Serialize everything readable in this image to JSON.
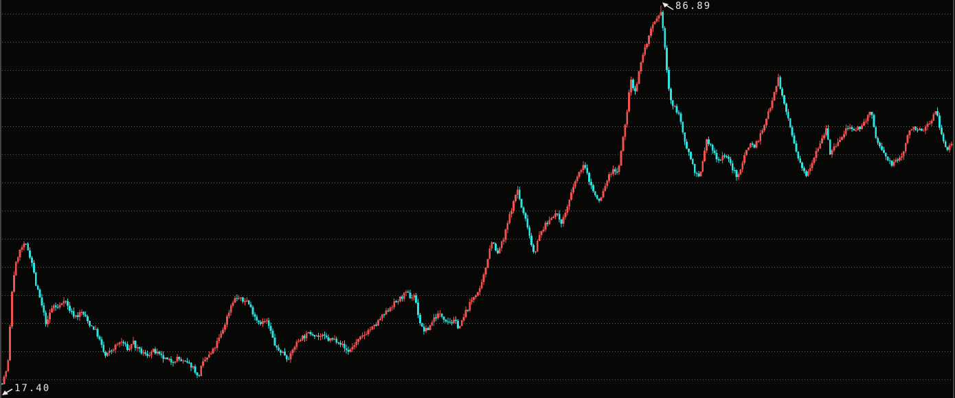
{
  "chart_data": {
    "type": "candlestick",
    "title": "",
    "xlabel": "",
    "ylabel": "",
    "legend": "none",
    "grid": "dotted-horizontal",
    "max_price": 86.89,
    "min_price": 17.4,
    "max_label": "86.89",
    "min_label": "17.40",
    "up_color": "#f25250",
    "down_color": "#2ce4e4",
    "background_color": "#070706",
    "grid_color": "#7d7d7d",
    "axis_color": "#454545",
    "label_color": "#e8e8e8",
    "price_path": [
      [
        3,
        17.6
      ],
      [
        8,
        19.3
      ],
      [
        12,
        21.8
      ],
      [
        15,
        28.7
      ],
      [
        18,
        35.7
      ],
      [
        22,
        38.9
      ],
      [
        27,
        41.4
      ],
      [
        33,
        42.7
      ],
      [
        38,
        42.9
      ],
      [
        42,
        41.7
      ],
      [
        47,
        39.5
      ],
      [
        52,
        35.7
      ],
      [
        58,
        33.2
      ],
      [
        63,
        30.7
      ],
      [
        68,
        28.1
      ],
      [
        73,
        30.7
      ],
      [
        78,
        31.9
      ],
      [
        83,
        31.3
      ],
      [
        88,
        31.9
      ],
      [
        93,
        33.2
      ],
      [
        98,
        31.9
      ],
      [
        103,
        30.7
      ],
      [
        108,
        30.0
      ],
      [
        113,
        30.0
      ],
      [
        118,
        30.7
      ],
      [
        123,
        30.0
      ],
      [
        128,
        28.8
      ],
      [
        133,
        28.1
      ],
      [
        138,
        27.5
      ],
      [
        143,
        26.2
      ],
      [
        148,
        24.3
      ],
      [
        153,
        22.5
      ],
      [
        158,
        23.1
      ],
      [
        163,
        23.7
      ],
      [
        168,
        24.3
      ],
      [
        173,
        25.0
      ],
      [
        178,
        25.2
      ],
      [
        183,
        24.3
      ],
      [
        188,
        23.7
      ],
      [
        193,
        25.6
      ],
      [
        198,
        24.0
      ],
      [
        203,
        23.5
      ],
      [
        208,
        23.1
      ],
      [
        213,
        22.7
      ],
      [
        218,
        23.1
      ],
      [
        223,
        23.5
      ],
      [
        228,
        23.1
      ],
      [
        233,
        22.5
      ],
      [
        238,
        22.2
      ],
      [
        243,
        21.8
      ],
      [
        248,
        21.6
      ],
      [
        253,
        21.8
      ],
      [
        258,
        22.2
      ],
      [
        263,
        21.8
      ],
      [
        268,
        21.4
      ],
      [
        273,
        21.2
      ],
      [
        278,
        20.9
      ],
      [
        283,
        20.3
      ],
      [
        288,
        18.4
      ],
      [
        293,
        20.6
      ],
      [
        298,
        21.8
      ],
      [
        303,
        22.5
      ],
      [
        308,
        23.1
      ],
      [
        313,
        24.3
      ],
      [
        318,
        25.6
      ],
      [
        323,
        26.9
      ],
      [
        328,
        28.8
      ],
      [
        333,
        30.7
      ],
      [
        338,
        32.6
      ],
      [
        343,
        33.2
      ],
      [
        348,
        33.2
      ],
      [
        353,
        32.6
      ],
      [
        358,
        33.0
      ],
      [
        363,
        31.9
      ],
      [
        368,
        30.7
      ],
      [
        373,
        29.4
      ],
      [
        378,
        28.8
      ],
      [
        383,
        28.8
      ],
      [
        388,
        29.0
      ],
      [
        393,
        27.5
      ],
      [
        398,
        25.4
      ],
      [
        403,
        23.7
      ],
      [
        408,
        23.5
      ],
      [
        413,
        23.1
      ],
      [
        418,
        22.2
      ],
      [
        423,
        22.7
      ],
      [
        428,
        24.3
      ],
      [
        433,
        25.2
      ],
      [
        438,
        26.0
      ],
      [
        443,
        26.2
      ],
      [
        448,
        26.6
      ],
      [
        453,
        26.9
      ],
      [
        458,
        26.6
      ],
      [
        463,
        26.2
      ],
      [
        468,
        26.2
      ],
      [
        473,
        26.0
      ],
      [
        478,
        25.6
      ],
      [
        483,
        25.6
      ],
      [
        488,
        25.6
      ],
      [
        493,
        25.4
      ],
      [
        498,
        24.6
      ],
      [
        503,
        23.7
      ],
      [
        508,
        23.5
      ],
      [
        513,
        24.3
      ],
      [
        518,
        25.0
      ],
      [
        523,
        25.6
      ],
      [
        528,
        26.2
      ],
      [
        533,
        26.9
      ],
      [
        538,
        27.5
      ],
      [
        543,
        27.8
      ],
      [
        548,
        28.4
      ],
      [
        553,
        29.4
      ],
      [
        558,
        30.0
      ],
      [
        563,
        30.7
      ],
      [
        568,
        31.6
      ],
      [
        573,
        32.2
      ],
      [
        578,
        32.6
      ],
      [
        583,
        33.2
      ],
      [
        588,
        33.8
      ],
      [
        593,
        34.1
      ],
      [
        598,
        33.2
      ],
      [
        603,
        33.8
      ],
      [
        608,
        30.7
      ],
      [
        613,
        27.8
      ],
      [
        618,
        27.2
      ],
      [
        623,
        27.5
      ],
      [
        628,
        28.8
      ],
      [
        633,
        29.8
      ],
      [
        638,
        30.2
      ],
      [
        643,
        30.0
      ],
      [
        648,
        29.4
      ],
      [
        653,
        29.0
      ],
      [
        658,
        28.8
      ],
      [
        663,
        28.8
      ],
      [
        668,
        27.8
      ],
      [
        673,
        29.0
      ],
      [
        678,
        30.7
      ],
      [
        683,
        31.9
      ],
      [
        688,
        33.2
      ],
      [
        693,
        34.1
      ],
      [
        698,
        34.5
      ],
      [
        703,
        36.6
      ],
      [
        708,
        39.5
      ],
      [
        713,
        42.7
      ],
      [
        718,
        43.9
      ],
      [
        723,
        40.8
      ],
      [
        728,
        42.7
      ],
      [
        733,
        43.9
      ],
      [
        738,
        46.5
      ],
      [
        743,
        49.0
      ],
      [
        748,
        50.9
      ],
      [
        753,
        53.4
      ],
      [
        758,
        50.2
      ],
      [
        763,
        48.3
      ],
      [
        768,
        46.5
      ],
      [
        773,
        43.3
      ],
      [
        778,
        41.4
      ],
      [
        783,
        43.9
      ],
      [
        788,
        45.4
      ],
      [
        793,
        46.5
      ],
      [
        798,
        47.1
      ],
      [
        803,
        48.3
      ],
      [
        808,
        48.7
      ],
      [
        813,
        48.0
      ],
      [
        818,
        47.1
      ],
      [
        823,
        49.0
      ],
      [
        828,
        50.9
      ],
      [
        833,
        52.8
      ],
      [
        838,
        55.0
      ],
      [
        843,
        55.9
      ],
      [
        848,
        57.8
      ],
      [
        853,
        56.6
      ],
      [
        858,
        54.7
      ],
      [
        863,
        53.0
      ],
      [
        868,
        51.5
      ],
      [
        873,
        50.9
      ],
      [
        878,
        52.8
      ],
      [
        883,
        54.7
      ],
      [
        888,
        55.9
      ],
      [
        893,
        57.2
      ],
      [
        898,
        55.9
      ],
      [
        903,
        59.1
      ],
      [
        908,
        63.5
      ],
      [
        913,
        67.9
      ],
      [
        918,
        73.6
      ],
      [
        923,
        71.1
      ],
      [
        928,
        73.0
      ],
      [
        933,
        76.8
      ],
      [
        938,
        78.7
      ],
      [
        943,
        80.6
      ],
      [
        948,
        82.5
      ],
      [
        953,
        83.7
      ],
      [
        958,
        84.4
      ],
      [
        963,
        85.6
      ],
      [
        968,
        78.7
      ],
      [
        973,
        71.7
      ],
      [
        978,
        68.6
      ],
      [
        983,
        67.9
      ],
      [
        988,
        67.3
      ],
      [
        993,
        63.5
      ],
      [
        998,
        61.6
      ],
      [
        1003,
        59.7
      ],
      [
        1008,
        57.8
      ],
      [
        1013,
        55.9
      ],
      [
        1018,
        55.0
      ],
      [
        1023,
        58.5
      ],
      [
        1028,
        62.2
      ],
      [
        1033,
        61.4
      ],
      [
        1038,
        60.1
      ],
      [
        1043,
        59.1
      ],
      [
        1048,
        58.5
      ],
      [
        1053,
        59.7
      ],
      [
        1058,
        59.1
      ],
      [
        1063,
        57.8
      ],
      [
        1068,
        56.6
      ],
      [
        1073,
        55.0
      ],
      [
        1078,
        57.2
      ],
      [
        1083,
        59.1
      ],
      [
        1088,
        61.0
      ],
      [
        1093,
        61.6
      ],
      [
        1098,
        61.0
      ],
      [
        1103,
        62.2
      ],
      [
        1108,
        63.5
      ],
      [
        1113,
        64.8
      ],
      [
        1118,
        67.3
      ],
      [
        1123,
        69.2
      ],
      [
        1128,
        71.7
      ],
      [
        1133,
        73.6
      ],
      [
        1138,
        70.5
      ],
      [
        1143,
        67.9
      ],
      [
        1148,
        66.0
      ],
      [
        1153,
        62.9
      ],
      [
        1158,
        60.4
      ],
      [
        1163,
        58.1
      ],
      [
        1168,
        56.8
      ],
      [
        1173,
        55.9
      ],
      [
        1178,
        57.2
      ],
      [
        1183,
        58.5
      ],
      [
        1188,
        60.4
      ],
      [
        1193,
        61.6
      ],
      [
        1198,
        62.9
      ],
      [
        1203,
        64.8
      ],
      [
        1208,
        59.7
      ],
      [
        1213,
        60.4
      ],
      [
        1218,
        61.6
      ],
      [
        1223,
        62.2
      ],
      [
        1228,
        63.1
      ],
      [
        1233,
        64.8
      ],
      [
        1238,
        64.1
      ],
      [
        1243,
        63.5
      ],
      [
        1248,
        64.1
      ],
      [
        1253,
        64.8
      ],
      [
        1258,
        65.4
      ],
      [
        1263,
        66.7
      ],
      [
        1268,
        67.3
      ],
      [
        1273,
        63.5
      ],
      [
        1278,
        61.6
      ],
      [
        1283,
        60.4
      ],
      [
        1288,
        59.3
      ],
      [
        1293,
        58.5
      ],
      [
        1298,
        57.8
      ],
      [
        1303,
        58.1
      ],
      [
        1308,
        58.8
      ],
      [
        1313,
        59.3
      ],
      [
        1318,
        61.6
      ],
      [
        1323,
        63.5
      ],
      [
        1328,
        64.8
      ],
      [
        1333,
        64.4
      ],
      [
        1338,
        63.9
      ],
      [
        1343,
        63.5
      ],
      [
        1348,
        64.8
      ],
      [
        1353,
        65.4
      ],
      [
        1358,
        66.7
      ],
      [
        1363,
        67.6
      ],
      [
        1368,
        64.1
      ],
      [
        1373,
        62.2
      ],
      [
        1378,
        60.1
      ],
      [
        1383,
        61.4
      ],
      [
        1388,
        62.3
      ]
    ]
  }
}
